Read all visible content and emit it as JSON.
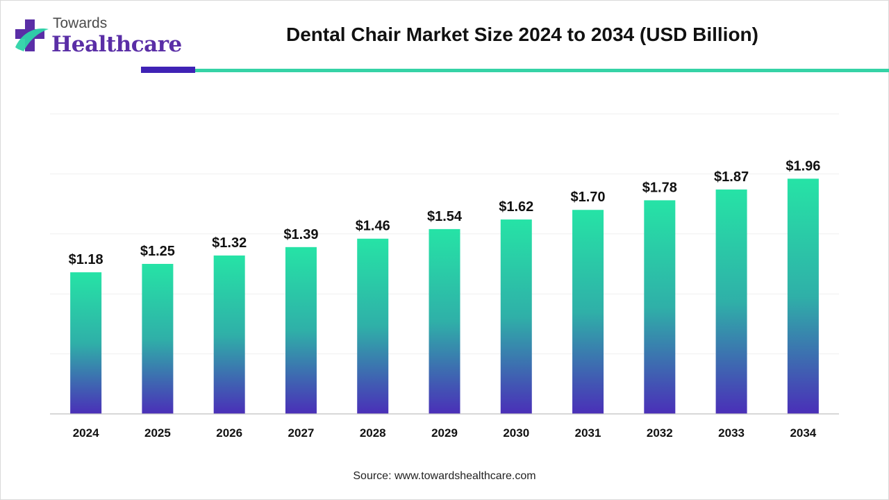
{
  "brand": {
    "top_text": "Towards",
    "bottom_text": "Healthcare",
    "colors": {
      "purple": "#5a2ea6",
      "teal": "#2ed4a8",
      "accent_bar": "#3f22b5",
      "rule": "#35d3a6"
    }
  },
  "footer": {
    "source": "Source: www.towardshealthcare.com"
  },
  "chart_data": {
    "type": "bar",
    "title": "Dental Chair Market Size 2024 to 2034 (USD Billion)",
    "xlabel": "",
    "ylabel": "",
    "categories": [
      "2024",
      "2025",
      "2026",
      "2027",
      "2028",
      "2029",
      "2030",
      "2031",
      "2032",
      "2033",
      "2034"
    ],
    "values": [
      1.18,
      1.25,
      1.32,
      1.39,
      1.46,
      1.54,
      1.62,
      1.7,
      1.78,
      1.87,
      1.96
    ],
    "value_labels": [
      "$1.18",
      "$1.25",
      "$1.32",
      "$1.39",
      "$1.46",
      "$1.54",
      "$1.62",
      "$1.70",
      "$1.78",
      "$1.87",
      "$1.96"
    ],
    "ylim": [
      0,
      2.5
    ],
    "grid": true,
    "legend": "none",
    "bar_gradient": {
      "top": "#26e3a6",
      "middle": "#2fb0a8",
      "bottom": "#4a2fb8"
    }
  }
}
